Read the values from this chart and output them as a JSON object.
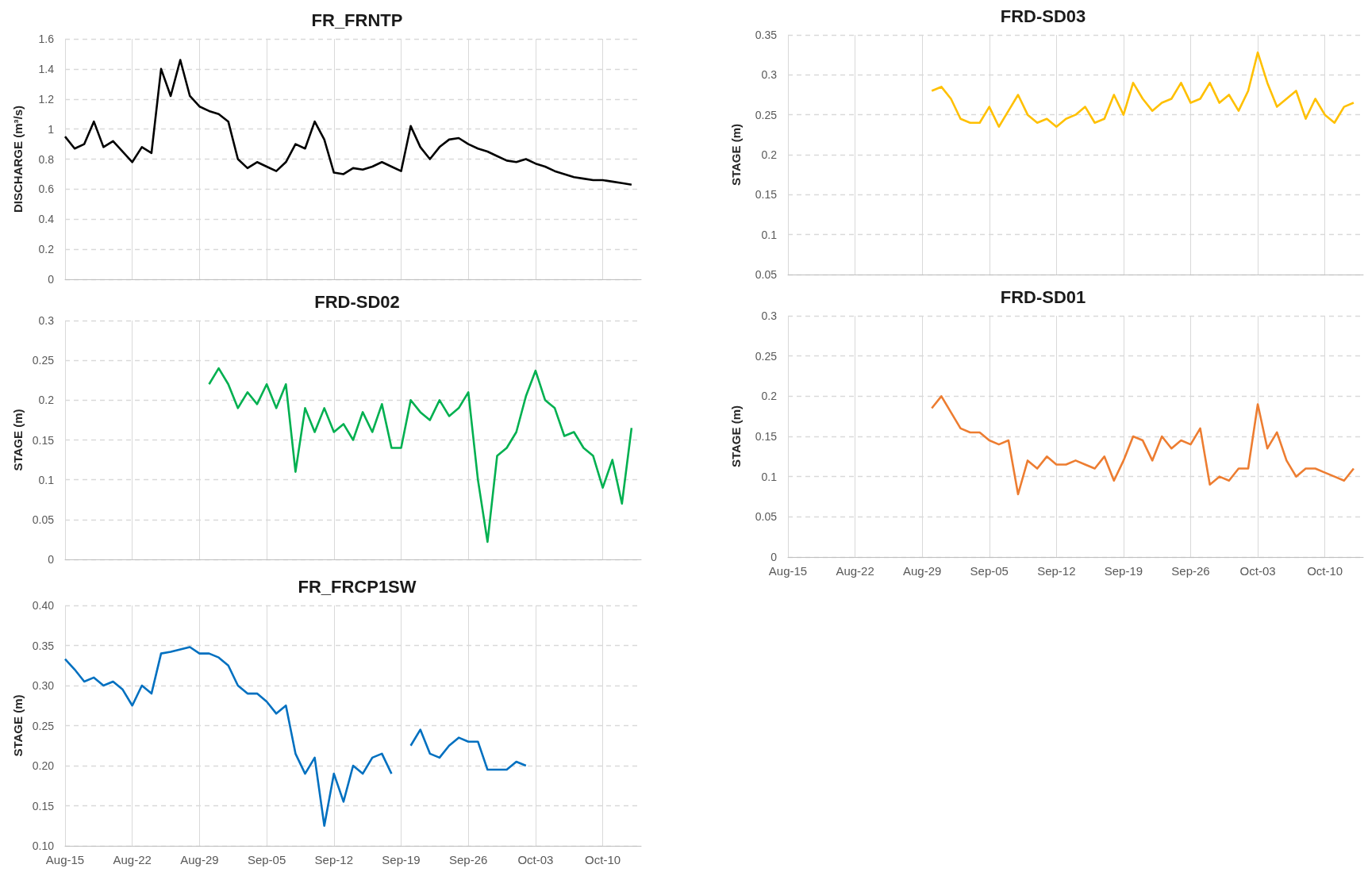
{
  "chart_data": [
    {
      "type": "line",
      "title": "FR_FRNTP",
      "ylabel": "DISCHARGE (m³/s)",
      "color": "#000000",
      "grid": true,
      "tick_labels": "y",
      "x": [
        "--08-15",
        "--08-16",
        "--08-17",
        "--08-18",
        "--08-19",
        "--08-20",
        "--08-21",
        "--08-22",
        "--08-23",
        "--08-24",
        "--08-25",
        "--08-26",
        "--08-27",
        "--08-28",
        "--08-29",
        "--08-30",
        "--08-31",
        "--09-01",
        "--09-02",
        "--09-03",
        "--09-04",
        "--09-05",
        "--09-06",
        "--09-07",
        "--09-08",
        "--09-09",
        "--09-10",
        "--09-11",
        "--09-12",
        "--09-13",
        "--09-14",
        "--09-15",
        "--09-16",
        "--09-17",
        "--09-18",
        "--09-19",
        "--09-20",
        "--09-21",
        "--09-22",
        "--09-23",
        "--09-24",
        "--09-25",
        "--09-26",
        "--09-27",
        "--09-28",
        "--09-29",
        "--09-30",
        "--10-01",
        "--10-02",
        "--10-03",
        "--10-04",
        "--10-05",
        "--10-06",
        "--10-07",
        "--10-08",
        "--10-09",
        "--10-10",
        "--10-11",
        "--10-12",
        "--10-13"
      ],
      "values": [
        0.95,
        0.87,
        0.9,
        1.05,
        0.88,
        0.92,
        0.85,
        0.78,
        0.88,
        0.84,
        1.4,
        1.22,
        1.46,
        1.22,
        1.15,
        1.12,
        1.1,
        1.05,
        0.8,
        0.74,
        0.78,
        0.75,
        0.72,
        0.78,
        0.9,
        0.87,
        1.05,
        0.93,
        0.71,
        0.7,
        0.74,
        0.73,
        0.75,
        0.78,
        0.75,
        0.72,
        1.02,
        0.88,
        0.8,
        0.88,
        0.93,
        0.94,
        0.9,
        0.87,
        0.85,
        0.82,
        0.79,
        0.78,
        0.8,
        0.77,
        0.75,
        0.72,
        0.7,
        0.68,
        0.67,
        0.66,
        0.66,
        0.65,
        0.64,
        0.63
      ],
      "xlim": [
        "--08-15",
        "--10-14"
      ],
      "xticks": [
        {
          "value": "--08-15",
          "label": "Aug-15"
        },
        {
          "value": "--08-22",
          "label": "Aug-22"
        },
        {
          "value": "--08-29",
          "label": "Aug-29"
        },
        {
          "value": "--09-05",
          "label": "Sep-05"
        },
        {
          "value": "--09-12",
          "label": "Sep-12"
        },
        {
          "value": "--09-19",
          "label": "Sep-19"
        },
        {
          "value": "--09-26",
          "label": "Sep-26"
        },
        {
          "value": "--10-03",
          "label": "Oct-03"
        },
        {
          "value": "--10-10",
          "label": "Oct-10"
        }
      ],
      "ylim": [
        0,
        1.6
      ],
      "yticks": [
        0,
        0.2,
        0.4,
        0.6,
        0.8,
        1,
        1.2,
        1.4,
        1.6
      ]
    },
    {
      "type": "line",
      "title": "FRD-SD03",
      "ylabel": "STAGE (m)",
      "color": "#ffc000",
      "grid": true,
      "tick_labels": "y",
      "x": [
        "--08-30",
        "--08-31",
        "--09-01",
        "--09-02",
        "--09-03",
        "--09-04",
        "--09-05",
        "--09-06",
        "--09-07",
        "--09-08",
        "--09-09",
        "--09-10",
        "--09-11",
        "--09-12",
        "--09-13",
        "--09-14",
        "--09-15",
        "--09-16",
        "--09-17",
        "--09-18",
        "--09-19",
        "--09-20",
        "--09-21",
        "--09-22",
        "--09-23",
        "--09-24",
        "--09-25",
        "--09-26",
        "--09-27",
        "--09-28",
        "--09-29",
        "--09-30",
        "--10-01",
        "--10-02",
        "--10-03",
        "--10-04",
        "--10-05",
        "--10-06",
        "--10-07",
        "--10-08",
        "--10-09",
        "--10-10",
        "--10-11",
        "--10-12",
        "--10-13"
      ],
      "values": [
        0.28,
        0.285,
        0.27,
        0.245,
        0.24,
        0.24,
        0.26,
        0.235,
        0.255,
        0.275,
        0.25,
        0.24,
        0.245,
        0.235,
        0.245,
        0.25,
        0.26,
        0.24,
        0.245,
        0.275,
        0.25,
        0.29,
        0.27,
        0.255,
        0.265,
        0.27,
        0.29,
        0.265,
        0.27,
        0.29,
        0.265,
        0.275,
        0.255,
        0.28,
        0.328,
        0.29,
        0.26,
        0.27,
        0.28,
        0.245,
        0.27,
        0.25,
        0.24,
        0.26,
        0.265
      ],
      "xlim": [
        "--08-15",
        "--10-14"
      ],
      "xticks": [
        {
          "value": "--08-15",
          "label": "Aug-15"
        },
        {
          "value": "--08-22",
          "label": "Aug-22"
        },
        {
          "value": "--08-29",
          "label": "Aug-29"
        },
        {
          "value": "--09-05",
          "label": "Sep-05"
        },
        {
          "value": "--09-12",
          "label": "Sep-12"
        },
        {
          "value": "--09-19",
          "label": "Sep-19"
        },
        {
          "value": "--09-26",
          "label": "Sep-26"
        },
        {
          "value": "--10-03",
          "label": "Oct-03"
        },
        {
          "value": "--10-10",
          "label": "Oct-10"
        }
      ],
      "ylim": [
        0.05,
        0.35
      ],
      "yticks": [
        0.05,
        0.1,
        0.15,
        0.2,
        0.25,
        0.3,
        0.35
      ]
    },
    {
      "type": "line",
      "title": "FRD-SD02",
      "ylabel": "STAGE (m)",
      "color": "#00b050",
      "grid": true,
      "tick_labels": "y",
      "x": [
        "--08-30",
        "--08-31",
        "--09-01",
        "--09-02",
        "--09-03",
        "--09-04",
        "--09-05",
        "--09-06",
        "--09-07",
        "--09-08",
        "--09-09",
        "--09-10",
        "--09-11",
        "--09-12",
        "--09-13",
        "--09-14",
        "--09-15",
        "--09-16",
        "--09-17",
        "--09-18",
        "--09-19",
        "--09-20",
        "--09-21",
        "--09-22",
        "--09-23",
        "--09-24",
        "--09-25",
        "--09-26",
        "--09-27",
        "--09-28",
        "--09-29",
        "--09-30",
        "--10-01",
        "--10-02",
        "--10-03",
        "--10-04",
        "--10-05",
        "--10-06",
        "--10-07",
        "--10-08",
        "--10-09",
        "--10-10",
        "--10-11",
        "--10-12",
        "--10-13"
      ],
      "values": [
        0.22,
        0.24,
        0.22,
        0.19,
        0.21,
        0.195,
        0.22,
        0.19,
        0.22,
        0.11,
        0.19,
        0.16,
        0.19,
        0.16,
        0.17,
        0.15,
        0.185,
        0.16,
        0.195,
        0.14,
        0.14,
        0.2,
        0.185,
        0.175,
        0.2,
        0.18,
        0.19,
        0.21,
        0.1,
        0.022,
        0.13,
        0.14,
        0.16,
        0.205,
        0.237,
        0.2,
        0.19,
        0.155,
        0.16,
        0.14,
        0.13,
        0.09,
        0.125,
        0.07,
        0.165
      ],
      "xlim": [
        "--08-15",
        "--10-14"
      ],
      "xticks": [
        {
          "value": "--08-15",
          "label": "Aug-15"
        },
        {
          "value": "--08-22",
          "label": "Aug-22"
        },
        {
          "value": "--08-29",
          "label": "Aug-29"
        },
        {
          "value": "--09-05",
          "label": "Sep-05"
        },
        {
          "value": "--09-12",
          "label": "Sep-12"
        },
        {
          "value": "--09-19",
          "label": "Sep-19"
        },
        {
          "value": "--09-26",
          "label": "Sep-26"
        },
        {
          "value": "--10-03",
          "label": "Oct-03"
        },
        {
          "value": "--10-10",
          "label": "Oct-10"
        }
      ],
      "ylim": [
        0,
        0.3
      ],
      "yticks": [
        0,
        0.05,
        0.1,
        0.15,
        0.2,
        0.25,
        0.3
      ]
    },
    {
      "type": "line",
      "title": "FRD-SD01",
      "ylabel": "STAGE (m)",
      "color": "#ed7d31",
      "grid": true,
      "x": [
        "--08-30",
        "--08-31",
        "--09-01",
        "--09-02",
        "--09-03",
        "--09-04",
        "--09-05",
        "--09-06",
        "--09-07",
        "--09-08",
        "--09-09",
        "--09-10",
        "--09-11",
        "--09-12",
        "--09-13",
        "--09-14",
        "--09-15",
        "--09-16",
        "--09-17",
        "--09-18",
        "--09-19",
        "--09-20",
        "--09-21",
        "--09-22",
        "--09-23",
        "--09-24",
        "--09-25",
        "--09-26",
        "--09-27",
        "--09-28",
        "--09-29",
        "--09-30",
        "--10-01",
        "--10-02",
        "--10-03",
        "--10-04",
        "--10-05",
        "--10-06",
        "--10-07",
        "--10-08",
        "--10-09",
        "--10-10",
        "--10-11",
        "--10-12",
        "--10-13"
      ],
      "values": [
        0.185,
        0.2,
        0.18,
        0.16,
        0.155,
        0.155,
        0.145,
        0.14,
        0.145,
        0.078,
        0.12,
        0.11,
        0.125,
        0.115,
        0.115,
        0.12,
        0.115,
        0.11,
        0.125,
        0.095,
        0.12,
        0.15,
        0.145,
        0.12,
        0.15,
        0.135,
        0.145,
        0.14,
        0.16,
        0.09,
        0.1,
        0.095,
        0.11,
        0.11,
        0.19,
        0.135,
        0.155,
        0.12,
        0.1,
        0.11,
        0.11,
        0.105,
        0.1,
        0.095,
        0.11
      ],
      "xlim": [
        "--08-15",
        "--10-14"
      ],
      "xticks": [
        {
          "value": "--08-15",
          "label": "Aug-15"
        },
        {
          "value": "--08-22",
          "label": "Aug-22"
        },
        {
          "value": "--08-29",
          "label": "Aug-29"
        },
        {
          "value": "--09-05",
          "label": "Sep-05"
        },
        {
          "value": "--09-12",
          "label": "Sep-12"
        },
        {
          "value": "--09-19",
          "label": "Sep-19"
        },
        {
          "value": "--09-26",
          "label": "Sep-26"
        },
        {
          "value": "--10-03",
          "label": "Oct-03"
        },
        {
          "value": "--10-10",
          "label": "Oct-10"
        }
      ],
      "ylim": [
        0,
        0.3
      ],
      "yticks": [
        0,
        0.05,
        0.1,
        0.15,
        0.2,
        0.25,
        0.3
      ]
    },
    {
      "type": "line",
      "title": "FR_FRCP1SW",
      "ylabel": "STAGE (m)",
      "color": "#0070c0",
      "grid": true,
      "x": [
        "--08-15",
        "--08-16",
        "--08-17",
        "--08-18",
        "--08-19",
        "--08-20",
        "--08-21",
        "--08-22",
        "--08-23",
        "--08-24",
        "--08-25",
        "--08-26",
        "--08-27",
        "--08-28",
        "--08-29",
        "--08-30",
        "--08-31",
        "--09-01",
        "--09-02",
        "--09-03",
        "--09-04",
        "--09-05",
        "--09-06",
        "--09-07",
        "--09-08",
        "--09-09",
        "--09-10",
        "--09-11",
        "--09-12",
        "--09-13",
        "--09-14",
        "--09-15",
        "--09-16",
        "--09-17",
        "--09-18",
        "--09-19",
        "--09-20",
        "--09-21",
        "--09-22",
        "--09-23",
        "--09-24",
        "--09-25",
        "--09-26",
        "--09-27",
        "--09-28",
        "--09-29",
        "--09-30",
        "--10-01",
        "--10-02"
      ],
      "values": [
        0.333,
        0.32,
        0.305,
        0.31,
        0.3,
        0.305,
        0.295,
        0.275,
        0.3,
        0.29,
        0.34,
        0.342,
        0.345,
        0.348,
        0.34,
        0.34,
        0.335,
        0.325,
        0.3,
        0.29,
        0.29,
        0.28,
        0.265,
        0.275,
        0.215,
        0.19,
        0.21,
        0.125,
        0.19,
        0.155,
        0.2,
        0.19,
        0.21,
        0.215,
        0.19,
        null,
        0.225,
        0.245,
        0.215,
        0.21,
        0.225,
        0.235,
        0.23,
        0.23,
        0.195,
        0.195,
        0.195,
        0.205,
        0.2
      ],
      "xlim": [
        "--08-15",
        "--10-14"
      ],
      "xticks": [
        {
          "value": "--08-15",
          "label": "Aug-15"
        },
        {
          "value": "--08-22",
          "label": "Aug-22"
        },
        {
          "value": "--08-29",
          "label": "Aug-29"
        },
        {
          "value": "--09-05",
          "label": "Sep-05"
        },
        {
          "value": "--09-12",
          "label": "Sep-12"
        },
        {
          "value": "--09-19",
          "label": "Sep-19"
        },
        {
          "value": "--09-26",
          "label": "Sep-26"
        },
        {
          "value": "--10-03",
          "label": "Oct-03"
        },
        {
          "value": "--10-10",
          "label": "Oct-10"
        }
      ],
      "ylim": [
        0.1,
        0.4
      ],
      "yticks": [
        {
          "value": 0.1,
          "label": "0.10"
        },
        {
          "value": 0.15,
          "label": "0.15"
        },
        {
          "value": 0.2,
          "label": "0.20"
        },
        {
          "value": 0.25,
          "label": "0.25"
        },
        {
          "value": 0.3,
          "label": "0.30"
        },
        {
          "value": 0.35,
          "label": "0.35"
        },
        {
          "value": 0.4,
          "label": "0.40"
        }
      ]
    }
  ]
}
